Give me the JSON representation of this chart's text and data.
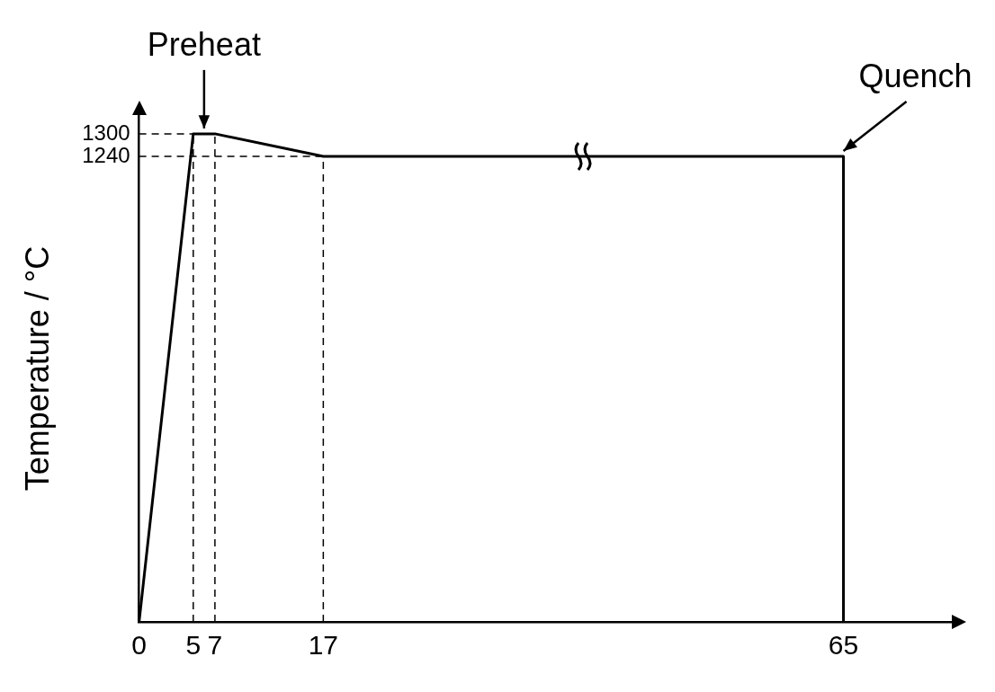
{
  "chart_data": {
    "type": "line",
    "ylabel": "Temperature / °C",
    "series": [
      {
        "color": "#000000",
        "x": [
          0,
          5,
          7,
          17,
          65,
          65
        ],
        "values": [
          0,
          1300,
          1300,
          1240,
          1240,
          0
        ]
      },
      {
        "color": "#000000",
        "line_style": "dashed",
        "x": [
          0,
          5
        ],
        "values": [
          1300,
          1300
        ]
      },
      {
        "color": "#000000",
        "line_style": "dashed",
        "x": [
          0,
          17
        ],
        "values": [
          1240,
          1240
        ]
      },
      {
        "color": "#000000",
        "line_style": "dashed",
        "x": [
          5,
          5
        ],
        "values": [
          0,
          1300
        ]
      },
      {
        "color": "#000000",
        "line_style": "dashed",
        "x": [
          7,
          7
        ],
        "values": [
          0,
          1300
        ]
      },
      {
        "color": "#000000",
        "line_style": "dashed",
        "x": [
          17,
          17
        ],
        "values": [
          0,
          1240
        ]
      }
    ],
    "xlim": [
      0,
      75
    ],
    "xticks": [
      0,
      5,
      7,
      17,
      65
    ],
    "ylim": [
      0,
      1350
    ],
    "yticks": [
      1240,
      1300
    ],
    "grid": false,
    "annotations": [
      {
        "text": "Preheat",
        "x": 6,
        "y": 1300
      },
      {
        "text": "Quench",
        "x": 65,
        "y": 1240
      }
    ]
  }
}
